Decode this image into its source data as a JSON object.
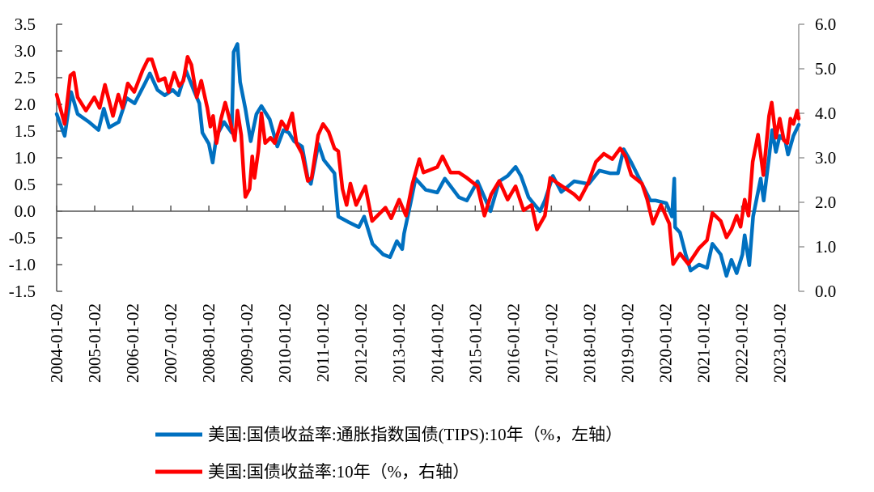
{
  "chart_data": {
    "type": "line",
    "title": "",
    "x_categories": [
      "2004-01-02",
      "2005-01-02",
      "2006-01-02",
      "2007-01-02",
      "2008-01-02",
      "2009-01-02",
      "2010-01-02",
      "2011-01-02",
      "2012-01-02",
      "2013-01-02",
      "2014-01-02",
      "2015-01-02",
      "2016-01-02",
      "2017-01-02",
      "2018-01-02",
      "2019-01-02",
      "2020-01-02",
      "2021-01-02",
      "2022-01-02",
      "2023-01-02"
    ],
    "x_range_years": [
      2004.0,
      2023.5
    ],
    "left_axis": {
      "ylim": [
        -1.5,
        3.5
      ],
      "ticks": [
        "3.5",
        "3.0",
        "2.5",
        "2.0",
        "1.5",
        "1.0",
        "0.5",
        "0.0",
        "-0.5",
        "-1.0",
        "-1.5"
      ],
      "tick_values": [
        3.5,
        3.0,
        2.5,
        2.0,
        1.5,
        1.0,
        0.5,
        0.0,
        -0.5,
        -1.0,
        -1.5
      ]
    },
    "right_axis": {
      "ylim": [
        0.0,
        6.0
      ],
      "ticks": [
        "6.0",
        "5.0",
        "4.0",
        "3.0",
        "2.0",
        "1.0",
        "0.0"
      ],
      "tick_values": [
        6,
        5,
        4,
        3,
        2,
        1,
        0
      ]
    },
    "legend_placement": "bottom",
    "series": [
      {
        "name": "美国:国债收益率:通胀指数国债(TIPS):10年（%，左轴）",
        "axis": "left",
        "color": "#0070c0",
        "points": [
          [
            2004.0,
            1.82
          ],
          [
            2004.21,
            1.41
          ],
          [
            2004.38,
            2.23
          ],
          [
            2004.55,
            1.82
          ],
          [
            2004.85,
            1.67
          ],
          [
            2005.1,
            1.52
          ],
          [
            2005.24,
            1.92
          ],
          [
            2005.38,
            1.57
          ],
          [
            2005.63,
            1.67
          ],
          [
            2005.84,
            2.12
          ],
          [
            2006.05,
            2.02
          ],
          [
            2006.34,
            2.42
          ],
          [
            2006.45,
            2.58
          ],
          [
            2006.65,
            2.27
          ],
          [
            2006.84,
            2.17
          ],
          [
            2007.05,
            2.27
          ],
          [
            2007.2,
            2.17
          ],
          [
            2007.4,
            2.63
          ],
          [
            2007.6,
            2.27
          ],
          [
            2007.75,
            2.02
          ],
          [
            2007.83,
            1.47
          ],
          [
            2008.0,
            1.26
          ],
          [
            2008.1,
            0.91
          ],
          [
            2008.2,
            1.41
          ],
          [
            2008.4,
            1.67
          ],
          [
            2008.6,
            1.47
          ],
          [
            2008.65,
            2.98
          ],
          [
            2008.75,
            3.13
          ],
          [
            2008.82,
            2.42
          ],
          [
            2008.96,
            1.92
          ],
          [
            2009.1,
            1.31
          ],
          [
            2009.25,
            1.82
          ],
          [
            2009.38,
            1.97
          ],
          [
            2009.6,
            1.72
          ],
          [
            2009.8,
            1.21
          ],
          [
            2009.96,
            1.52
          ],
          [
            2010.1,
            1.47
          ],
          [
            2010.24,
            1.31
          ],
          [
            2010.45,
            1.21
          ],
          [
            2010.6,
            0.61
          ],
          [
            2010.68,
            0.51
          ],
          [
            2010.88,
            1.26
          ],
          [
            2011.02,
            0.96
          ],
          [
            2011.3,
            0.71
          ],
          [
            2011.4,
            -0.1
          ],
          [
            2011.66,
            -0.2
          ],
          [
            2011.94,
            -0.3
          ],
          [
            2012.08,
            -0.1
          ],
          [
            2012.3,
            -0.61
          ],
          [
            2012.58,
            -0.81
          ],
          [
            2012.76,
            -0.86
          ],
          [
            2012.94,
            -0.56
          ],
          [
            2013.08,
            -0.71
          ],
          [
            2013.13,
            -0.42
          ],
          [
            2013.3,
            0.15
          ],
          [
            2013.43,
            0.61
          ],
          [
            2013.7,
            0.4
          ],
          [
            2014.0,
            0.35
          ],
          [
            2014.2,
            0.61
          ],
          [
            2014.57,
            0.26
          ],
          [
            2014.78,
            0.2
          ],
          [
            2015.06,
            0.56
          ],
          [
            2015.4,
            0.0
          ],
          [
            2015.63,
            0.56
          ],
          [
            2015.85,
            0.66
          ],
          [
            2016.06,
            0.83
          ],
          [
            2016.2,
            0.66
          ],
          [
            2016.4,
            0.26
          ],
          [
            2016.7,
            0.0
          ],
          [
            2016.83,
            0.2
          ],
          [
            2017.04,
            0.66
          ],
          [
            2017.26,
            0.36
          ],
          [
            2017.6,
            0.56
          ],
          [
            2017.98,
            0.51
          ],
          [
            2018.26,
            0.76
          ],
          [
            2018.54,
            0.71
          ],
          [
            2018.75,
            0.71
          ],
          [
            2018.9,
            1.16
          ],
          [
            2019.1,
            0.91
          ],
          [
            2019.38,
            0.51
          ],
          [
            2019.6,
            0.2
          ],
          [
            2019.74,
            0.2
          ],
          [
            2020.02,
            0.15
          ],
          [
            2020.17,
            -0.1
          ],
          [
            2020.23,
            0.61
          ],
          [
            2020.25,
            -0.3
          ],
          [
            2020.38,
            -0.4
          ],
          [
            2020.53,
            -0.81
          ],
          [
            2020.66,
            -1.11
          ],
          [
            2020.88,
            -1.0
          ],
          [
            2021.09,
            -1.06
          ],
          [
            2021.23,
            -0.61
          ],
          [
            2021.45,
            -0.81
          ],
          [
            2021.6,
            -1.21
          ],
          [
            2021.73,
            -0.91
          ],
          [
            2021.87,
            -1.16
          ],
          [
            2022.02,
            -0.81
          ],
          [
            2022.08,
            -0.45
          ],
          [
            2022.2,
            -1.01
          ],
          [
            2022.3,
            -0.1
          ],
          [
            2022.5,
            0.61
          ],
          [
            2022.58,
            0.2
          ],
          [
            2022.72,
            1.01
          ],
          [
            2022.8,
            1.52
          ],
          [
            2022.9,
            1.11
          ],
          [
            2023.0,
            1.41
          ],
          [
            2023.15,
            1.31
          ],
          [
            2023.22,
            1.06
          ],
          [
            2023.36,
            1.41
          ],
          [
            2023.5,
            1.62
          ]
        ]
      },
      {
        "name": "美国:国债收益率:10年（%，右轴）",
        "axis": "right",
        "color": "#ff0000",
        "points": [
          [
            2004.0,
            4.42
          ],
          [
            2004.21,
            3.76
          ],
          [
            2004.36,
            4.85
          ],
          [
            2004.45,
            4.91
          ],
          [
            2004.55,
            4.36
          ],
          [
            2004.77,
            4.06
          ],
          [
            2004.99,
            4.36
          ],
          [
            2005.13,
            4.12
          ],
          [
            2005.27,
            4.64
          ],
          [
            2005.48,
            3.94
          ],
          [
            2005.62,
            4.42
          ],
          [
            2005.73,
            4.12
          ],
          [
            2005.87,
            4.67
          ],
          [
            2006.04,
            4.48
          ],
          [
            2006.26,
            4.97
          ],
          [
            2006.4,
            5.21
          ],
          [
            2006.5,
            5.21
          ],
          [
            2006.68,
            4.73
          ],
          [
            2006.84,
            4.79
          ],
          [
            2006.94,
            4.48
          ],
          [
            2007.09,
            4.91
          ],
          [
            2007.22,
            4.61
          ],
          [
            2007.33,
            4.73
          ],
          [
            2007.44,
            5.27
          ],
          [
            2007.54,
            5.09
          ],
          [
            2007.68,
            4.36
          ],
          [
            2007.8,
            4.73
          ],
          [
            2007.96,
            4.12
          ],
          [
            2008.04,
            3.7
          ],
          [
            2008.11,
            3.94
          ],
          [
            2008.2,
            3.33
          ],
          [
            2008.32,
            3.88
          ],
          [
            2008.43,
            4.24
          ],
          [
            2008.54,
            3.88
          ],
          [
            2008.68,
            3.39
          ],
          [
            2008.75,
            4.06
          ],
          [
            2008.85,
            3.51
          ],
          [
            2008.92,
            2.55
          ],
          [
            2008.96,
            2.12
          ],
          [
            2009.07,
            2.3
          ],
          [
            2009.14,
            3.03
          ],
          [
            2009.2,
            2.55
          ],
          [
            2009.3,
            3.15
          ],
          [
            2009.38,
            4.0
          ],
          [
            2009.48,
            3.33
          ],
          [
            2009.62,
            3.45
          ],
          [
            2009.73,
            3.33
          ],
          [
            2009.91,
            3.82
          ],
          [
            2010.05,
            3.64
          ],
          [
            2010.19,
            4.0
          ],
          [
            2010.3,
            3.33
          ],
          [
            2010.45,
            3.09
          ],
          [
            2010.6,
            2.48
          ],
          [
            2010.7,
            2.55
          ],
          [
            2010.87,
            3.51
          ],
          [
            2011.0,
            3.76
          ],
          [
            2011.15,
            3.58
          ],
          [
            2011.3,
            3.21
          ],
          [
            2011.4,
            3.15
          ],
          [
            2011.51,
            2.3
          ],
          [
            2011.62,
            1.94
          ],
          [
            2011.72,
            2.42
          ],
          [
            2011.87,
            1.94
          ],
          [
            2012.11,
            2.36
          ],
          [
            2012.29,
            1.58
          ],
          [
            2012.43,
            1.7
          ],
          [
            2012.64,
            1.88
          ],
          [
            2012.79,
            1.64
          ],
          [
            2013.0,
            2.06
          ],
          [
            2013.18,
            1.7
          ],
          [
            2013.35,
            2.42
          ],
          [
            2013.53,
            2.97
          ],
          [
            2013.64,
            2.67
          ],
          [
            2014.0,
            2.79
          ],
          [
            2014.14,
            3.03
          ],
          [
            2014.35,
            2.67
          ],
          [
            2014.57,
            2.67
          ],
          [
            2014.78,
            2.55
          ],
          [
            2015.06,
            2.36
          ],
          [
            2015.24,
            1.7
          ],
          [
            2015.42,
            2.18
          ],
          [
            2015.63,
            2.48
          ],
          [
            2015.85,
            2.06
          ],
          [
            2016.06,
            2.36
          ],
          [
            2016.27,
            1.82
          ],
          [
            2016.48,
            1.94
          ],
          [
            2016.62,
            1.39
          ],
          [
            2016.83,
            1.7
          ],
          [
            2016.97,
            2.55
          ],
          [
            2017.18,
            2.42
          ],
          [
            2017.39,
            2.3
          ],
          [
            2017.6,
            2.18
          ],
          [
            2017.74,
            2.06
          ],
          [
            2017.96,
            2.42
          ],
          [
            2018.17,
            2.91
          ],
          [
            2018.38,
            3.09
          ],
          [
            2018.6,
            2.97
          ],
          [
            2018.81,
            3.21
          ],
          [
            2018.95,
            3.03
          ],
          [
            2019.1,
            2.61
          ],
          [
            2019.38,
            2.42
          ],
          [
            2019.52,
            2.06
          ],
          [
            2019.67,
            1.52
          ],
          [
            2019.88,
            1.94
          ],
          [
            2020.1,
            1.52
          ],
          [
            2020.2,
            0.61
          ],
          [
            2020.38,
            0.85
          ],
          [
            2020.6,
            0.61
          ],
          [
            2020.88,
            0.97
          ],
          [
            2021.09,
            1.15
          ],
          [
            2021.23,
            1.76
          ],
          [
            2021.45,
            1.58
          ],
          [
            2021.6,
            1.21
          ],
          [
            2021.73,
            1.39
          ],
          [
            2021.87,
            1.7
          ],
          [
            2021.97,
            1.45
          ],
          [
            2022.08,
            2.06
          ],
          [
            2022.18,
            1.7
          ],
          [
            2022.29,
            2.91
          ],
          [
            2022.43,
            3.52
          ],
          [
            2022.57,
            2.61
          ],
          [
            2022.72,
            3.94
          ],
          [
            2022.79,
            4.24
          ],
          [
            2022.9,
            3.45
          ],
          [
            2023.0,
            3.88
          ],
          [
            2023.11,
            3.39
          ],
          [
            2023.2,
            3.33
          ],
          [
            2023.28,
            3.88
          ],
          [
            2023.36,
            3.76
          ],
          [
            2023.46,
            4.06
          ],
          [
            2023.5,
            3.88
          ]
        ]
      }
    ]
  },
  "legend": {
    "items": [
      {
        "label": "美国:国债收益率:通胀指数国债(TIPS):10年（%，左轴）",
        "color": "#0070c0"
      },
      {
        "label": "美国:国债收益率:10年（%，右轴）",
        "color": "#ff0000"
      }
    ]
  }
}
